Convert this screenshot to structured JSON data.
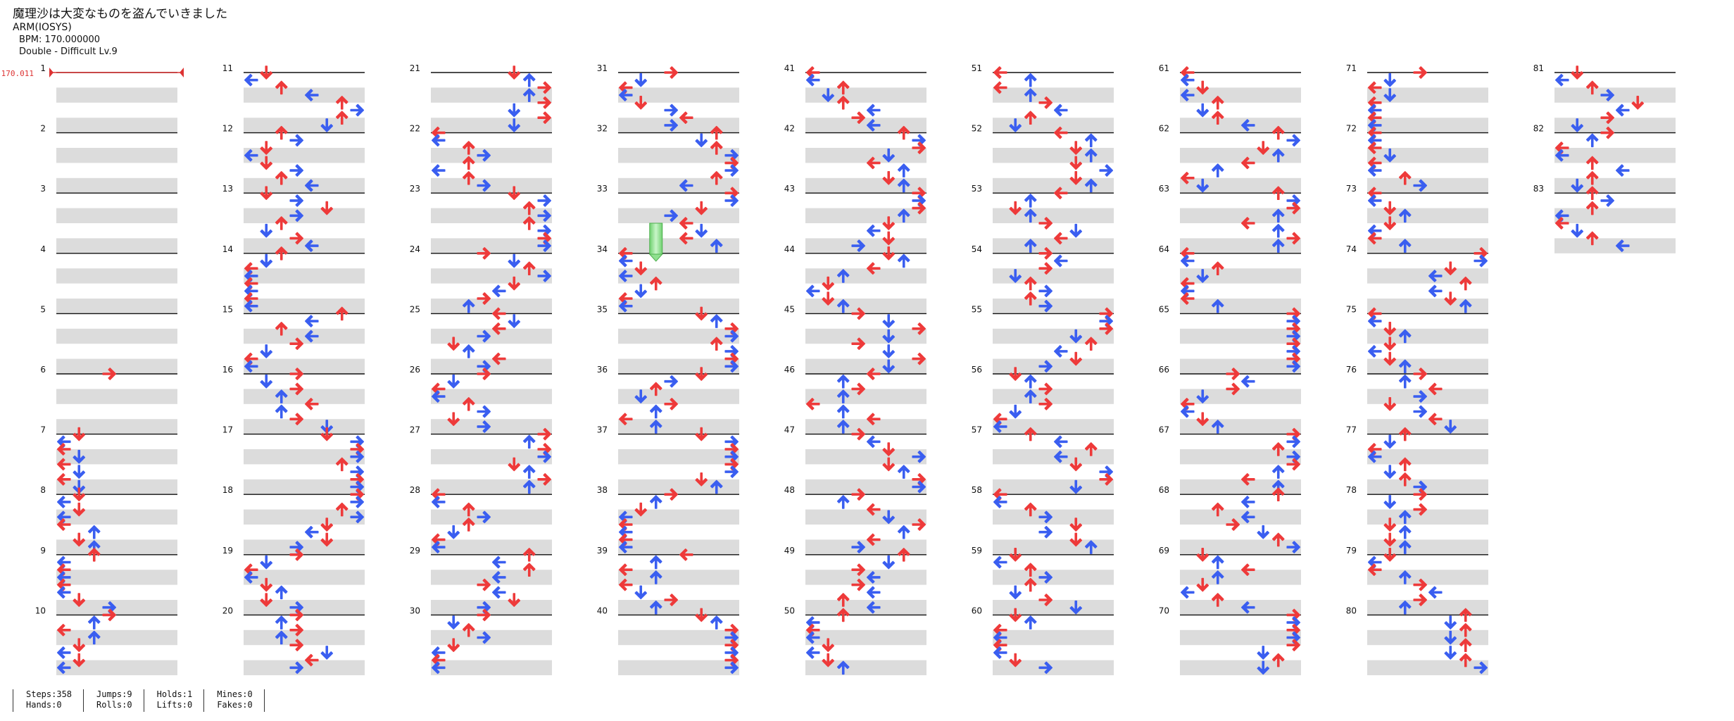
{
  "song": {
    "title": "魔理沙は大変なものを盗んでいきました",
    "artist": "ARM(IOSYS)",
    "bpm_text": "BPM: 170.000000",
    "chart_text": "Double - Difficult  Lv.9"
  },
  "bpm_marker": "170.011",
  "colors": {
    "red": "#ee3a3a",
    "blue": "#3a5ef0",
    "row_shade": "#dcdcdc",
    "measure_line": "#111111",
    "hold": "#8fe08f"
  },
  "measure_labels": [
    "1",
    "2",
    "3",
    "4",
    "5",
    "6",
    "7",
    "8",
    "9",
    "10",
    "11",
    "12",
    "13",
    "14",
    "15",
    "16",
    "17",
    "18",
    "19",
    "20",
    "21",
    "22",
    "23",
    "24",
    "25",
    "26",
    "27",
    "28",
    "29",
    "30",
    "31",
    "32",
    "33",
    "34",
    "35",
    "36",
    "37",
    "38",
    "39",
    "40",
    "41",
    "42",
    "43",
    "44",
    "45",
    "46",
    "47",
    "48",
    "49",
    "50",
    "51",
    "52",
    "53",
    "54",
    "55",
    "56",
    "57",
    "58",
    "59",
    "60",
    "61",
    "62",
    "63",
    "64",
    "65",
    "66",
    "67",
    "68",
    "69",
    "70",
    "71",
    "72",
    "73",
    "74",
    "75",
    "76",
    "77",
    "78",
    "79",
    "80",
    "81",
    "82",
    "83"
  ],
  "stats": {
    "steps": "Steps:358",
    "hands": "Hands:0",
    "jumps": "Jumps:9",
    "rolls": "Rolls:0",
    "holds": "Holds:1",
    "lifts": "Lifts:0",
    "mines": "Mines:0",
    "fakes": "Fakes:0"
  }
}
